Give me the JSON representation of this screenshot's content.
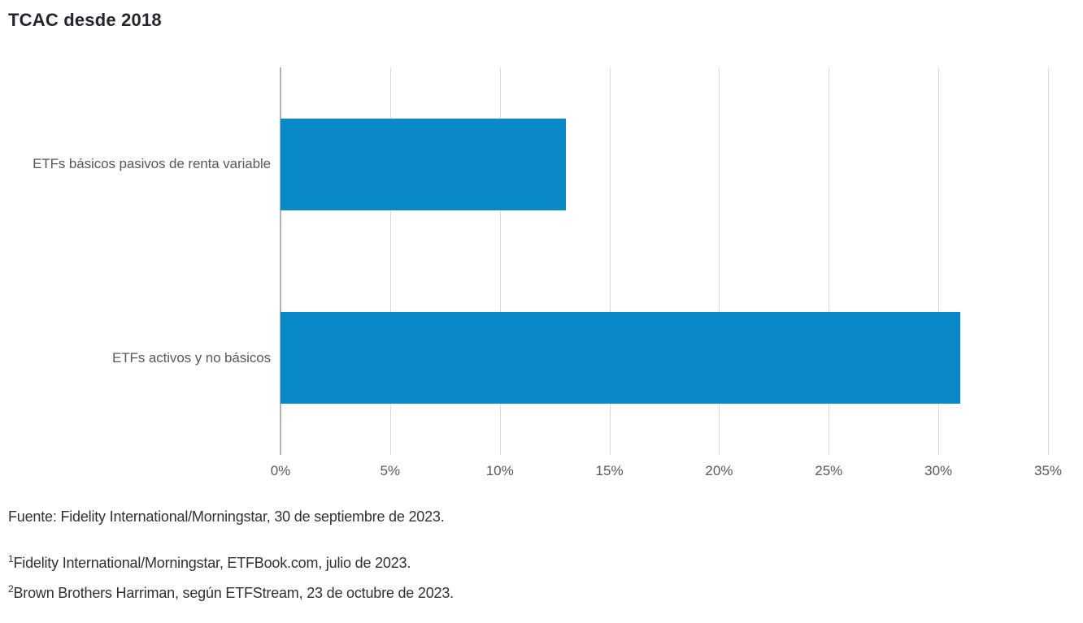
{
  "page": {
    "title": "TCAC desde 2018",
    "source": "Fuente: Fidelity International/Morningstar, 30 de septiembre de 2023.",
    "footnotes": [
      {
        "sup": "1",
        "text": "Fidelity International/Morningstar, ETFBook.com, julio de 2023."
      },
      {
        "sup": "2",
        "text": "Brown Brothers Harriman, según ETFStream, 23 de octubre de 2023."
      }
    ]
  },
  "chart_data": {
    "type": "bar",
    "orientation": "horizontal",
    "title": "TCAC desde 2018",
    "categories": [
      "ETFs básicos pasivos de renta variable",
      "ETFs activos y no básicos"
    ],
    "values": [
      13,
      31
    ],
    "unit": "%",
    "xlabel": "",
    "ylabel": "",
    "xlim": [
      0,
      35
    ],
    "xticks": [
      "0%",
      "5%",
      "10%",
      "15%",
      "20%",
      "25%",
      "30%",
      "35%"
    ],
    "grid": true,
    "legend": false,
    "colors": {
      "bar": "#0989c8",
      "gridline": "#dcdcdc",
      "zero_axis_line": "#b0b3b5",
      "axis_text": "#595959",
      "title_text": "#23262d",
      "footer_text": "#2e3138"
    }
  }
}
